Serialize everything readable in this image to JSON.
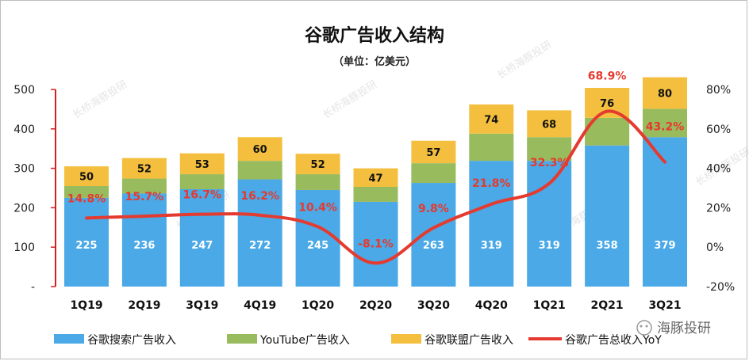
{
  "chart_data": {
    "type": "bar",
    "stacked": true,
    "title": "谷歌广告收入结构",
    "subtitle": "（单位：亿美元）",
    "categories": [
      "1Q19",
      "2Q19",
      "3Q19",
      "4Q19",
      "1Q20",
      "2Q20",
      "3Q20",
      "4Q20",
      "1Q21",
      "2Q21",
      "3Q21"
    ],
    "series": [
      {
        "name": "谷歌搜索广告收入",
        "color": "#4aa9e6",
        "values": [
          225,
          236,
          247,
          272,
          245,
          215,
          263,
          319,
          319,
          358,
          379
        ],
        "labels": [
          "225",
          "236",
          "247",
          "272",
          "245",
          "",
          "263",
          "319",
          "319",
          "358",
          "379"
        ]
      },
      {
        "name": "YouTube广告收入",
        "color": "#98bb5e",
        "values": [
          30,
          38,
          38,
          47,
          40,
          38,
          50,
          69,
          60,
          70,
          72
        ]
      },
      {
        "name": "谷歌联盟广告收入",
        "color": "#f4bf3e",
        "values": [
          50,
          52,
          53,
          60,
          52,
          47,
          57,
          74,
          68,
          76,
          80
        ],
        "labels": [
          "50",
          "52",
          "53",
          "60",
          "52",
          "47",
          "57",
          "74",
          "68",
          "76",
          "80"
        ]
      }
    ],
    "line": {
      "name": "谷歌广告总收入YoY",
      "color": "#e53a2f",
      "axis": "right",
      "values": [
        14.8,
        15.7,
        16.7,
        16.2,
        10.4,
        -8.1,
        9.8,
        21.8,
        32.3,
        68.9,
        43.2
      ],
      "labels": [
        "14.8%",
        "15.7%",
        "16.7%",
        "16.2%",
        "10.4%",
        "-8.1%",
        "9.8%",
        "21.8%",
        "32.3%",
        "68.9%",
        "43.2%"
      ]
    },
    "y_left": {
      "min": 0,
      "max": 500,
      "ticks": [
        "-",
        "100",
        "200",
        "300",
        "400",
        "500"
      ]
    },
    "y_right": {
      "min": -20,
      "max": 80,
      "ticks": [
        "-20%",
        "0%",
        "20%",
        "40%",
        "60%",
        "80%"
      ]
    },
    "grid": false,
    "legend": "bottom"
  },
  "watermark": {
    "badge": "海豚投研",
    "text": "长桥海豚投研"
  }
}
